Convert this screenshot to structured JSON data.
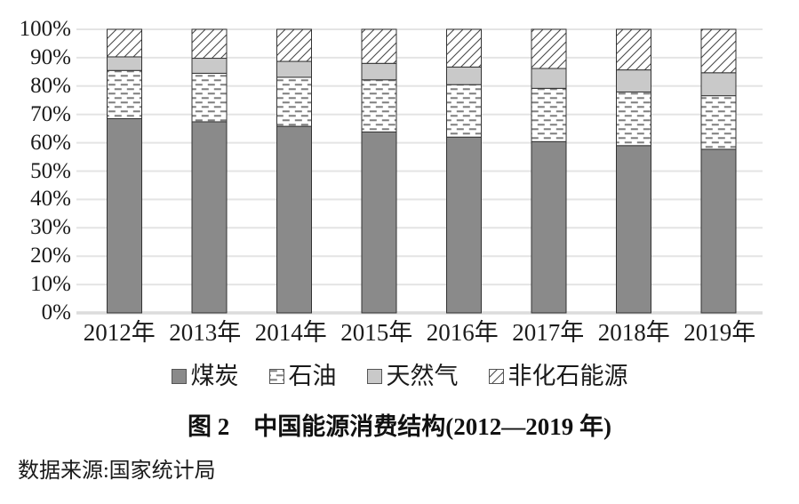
{
  "figure": {
    "caption": "图 2　中国能源消费结构(2012—2019 年)",
    "source": "数据来源:国家统计局"
  },
  "chart_data": {
    "type": "bar",
    "stacked": true,
    "title": "图 2　中国能源消费结构(2012—2019 年)",
    "xlabel": "",
    "ylabel": "",
    "ylim": [
      0,
      100
    ],
    "grid": true,
    "legend_position": "bottom",
    "y_tick_labels": [
      "100%",
      "90%",
      "80%",
      "70%",
      "60%",
      "50%",
      "40%",
      "30%",
      "20%",
      "10%",
      "0%"
    ],
    "categories": [
      "2012年",
      "2013年",
      "2014年",
      "2015年",
      "2016年",
      "2017年",
      "2018年",
      "2019年"
    ],
    "series": [
      {
        "name": "煤炭",
        "pattern": "solid-dark-gray",
        "values": [
          68.5,
          67.4,
          65.8,
          63.8,
          62.0,
          60.4,
          59.0,
          57.7
        ]
      },
      {
        "name": "石油",
        "pattern": "dashed-dots",
        "values": [
          17.0,
          17.1,
          17.3,
          18.4,
          18.5,
          18.8,
          18.9,
          18.9
        ]
      },
      {
        "name": "天然气",
        "pattern": "solid-light-gray",
        "values": [
          4.8,
          5.3,
          5.6,
          5.8,
          6.2,
          7.0,
          7.8,
          8.1
        ]
      },
      {
        "name": "非化石能源",
        "pattern": "diagonal-hatch",
        "values": [
          9.7,
          10.2,
          11.3,
          12.0,
          13.3,
          13.8,
          14.3,
          15.3
        ]
      }
    ],
    "source_note": "数据来源:国家统计局"
  },
  "colors": {
    "coal_fill": "#8a8a8a",
    "gas_fill": "#c9c9c9",
    "pattern_ink": "#7d7d7d",
    "hatch_ink": "#4a4a4a",
    "bar_border": "#333333",
    "gridline": "#e4e4e4",
    "baseline": "#dcdcdc",
    "background": "#ffffff"
  }
}
